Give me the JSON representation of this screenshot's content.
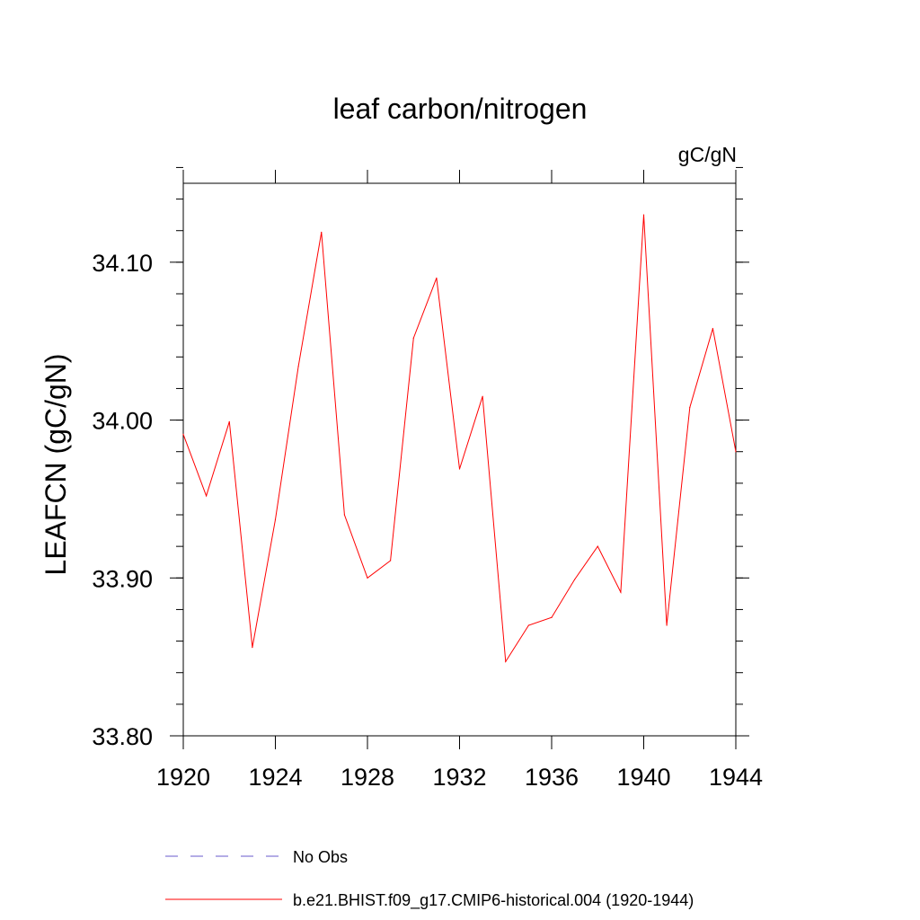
{
  "chart_data": {
    "type": "line",
    "title": "leaf carbon/nitrogen",
    "units_label": "gC/gN",
    "ylabel": "LEAFCN  (gC/gN)",
    "xlabel": "",
    "xlim": [
      1920,
      1944
    ],
    "ylim": [
      33.8,
      34.15
    ],
    "x_ticks": [
      1920,
      1924,
      1928,
      1932,
      1936,
      1940,
      1944
    ],
    "x_tick_labels": [
      "1920",
      "1924",
      "1928",
      "1932",
      "1936",
      "1940",
      "1944"
    ],
    "y_ticks": [
      33.8,
      33.9,
      34.0,
      34.1
    ],
    "y_tick_labels": [
      "33.80",
      "33.90",
      "34.00",
      "34.10"
    ],
    "grid": false,
    "series": [
      {
        "name": "b.e21.BHIST.f09_g17.CMIP6-historical.004 (1920-1944)",
        "color": "#ff0000",
        "x": [
          1920,
          1921,
          1922,
          1923,
          1924,
          1925,
          1926,
          1927,
          1928,
          1929,
          1930,
          1931,
          1932,
          1933,
          1934,
          1935,
          1936,
          1937,
          1938,
          1939,
          1940,
          1941,
          1942,
          1943,
          1944
        ],
        "y": [
          33.991,
          33.952,
          33.999,
          33.856,
          33.937,
          34.034,
          34.119,
          33.94,
          33.9,
          33.911,
          34.052,
          34.09,
          33.969,
          34.015,
          33.847,
          33.87,
          33.875,
          33.899,
          33.92,
          33.891,
          34.13,
          33.87,
          34.008,
          34.058,
          33.98
        ]
      }
    ],
    "legend": {
      "placement": "bottom-left",
      "entries": [
        {
          "label": "No Obs",
          "color": "#6a5acd",
          "style": "dashed"
        },
        {
          "label": "b.e21.BHIST.f09_g17.CMIP6-historical.004 (1920-1944)",
          "color": "#ff0000",
          "style": "solid"
        }
      ]
    }
  }
}
